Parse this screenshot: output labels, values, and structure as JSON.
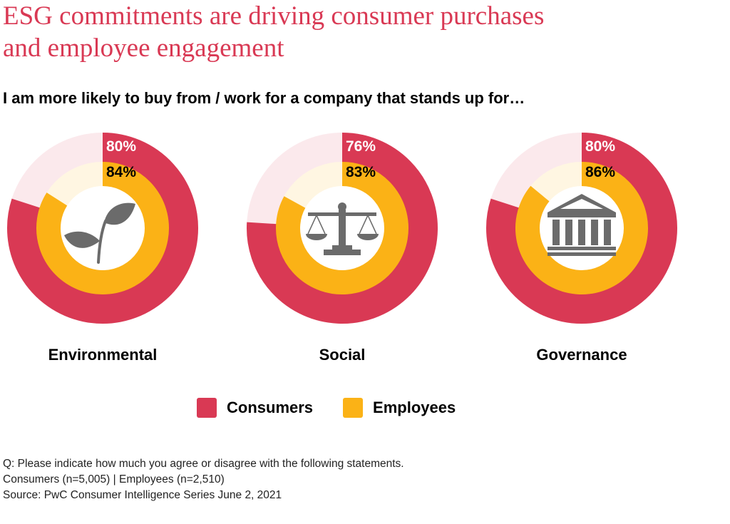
{
  "title_line1": "ESG commitments are driving consumer purchases",
  "title_line2": "and employee engagement",
  "subtitle": "I am more likely to buy from / work for a company that stands up for…",
  "colors": {
    "consumers": "#d93954",
    "consumers_bg": "#fbe9ec",
    "employees": "#fbb216",
    "employees_bg": "#fff6e2",
    "icon": "#6b6b6b"
  },
  "chart_data": {
    "type": "donut",
    "categories": [
      "Environmental",
      "Social",
      "Governance"
    ],
    "icons": [
      "leaf-icon",
      "scales-icon",
      "pillars-icon"
    ],
    "series": [
      {
        "name": "Consumers",
        "values": [
          80,
          76,
          80
        ],
        "labels": [
          "80%",
          "76%",
          "80%"
        ]
      },
      {
        "name": "Employees",
        "values": [
          84,
          83,
          86
        ],
        "labels": [
          "84%",
          "83%",
          "86%"
        ]
      }
    ],
    "unit": "%",
    "max": 100
  },
  "legend": [
    {
      "label": "Consumers",
      "color_key": "consumers"
    },
    {
      "label": "Employees",
      "color_key": "employees"
    }
  ],
  "footnotes": [
    "Q: Please indicate how much you agree or disagree with the following statements.",
    "Consumers (n=5,005) | Employees (n=2,510)",
    "Source: PwC Consumer Intelligence Series June 2, 2021"
  ]
}
